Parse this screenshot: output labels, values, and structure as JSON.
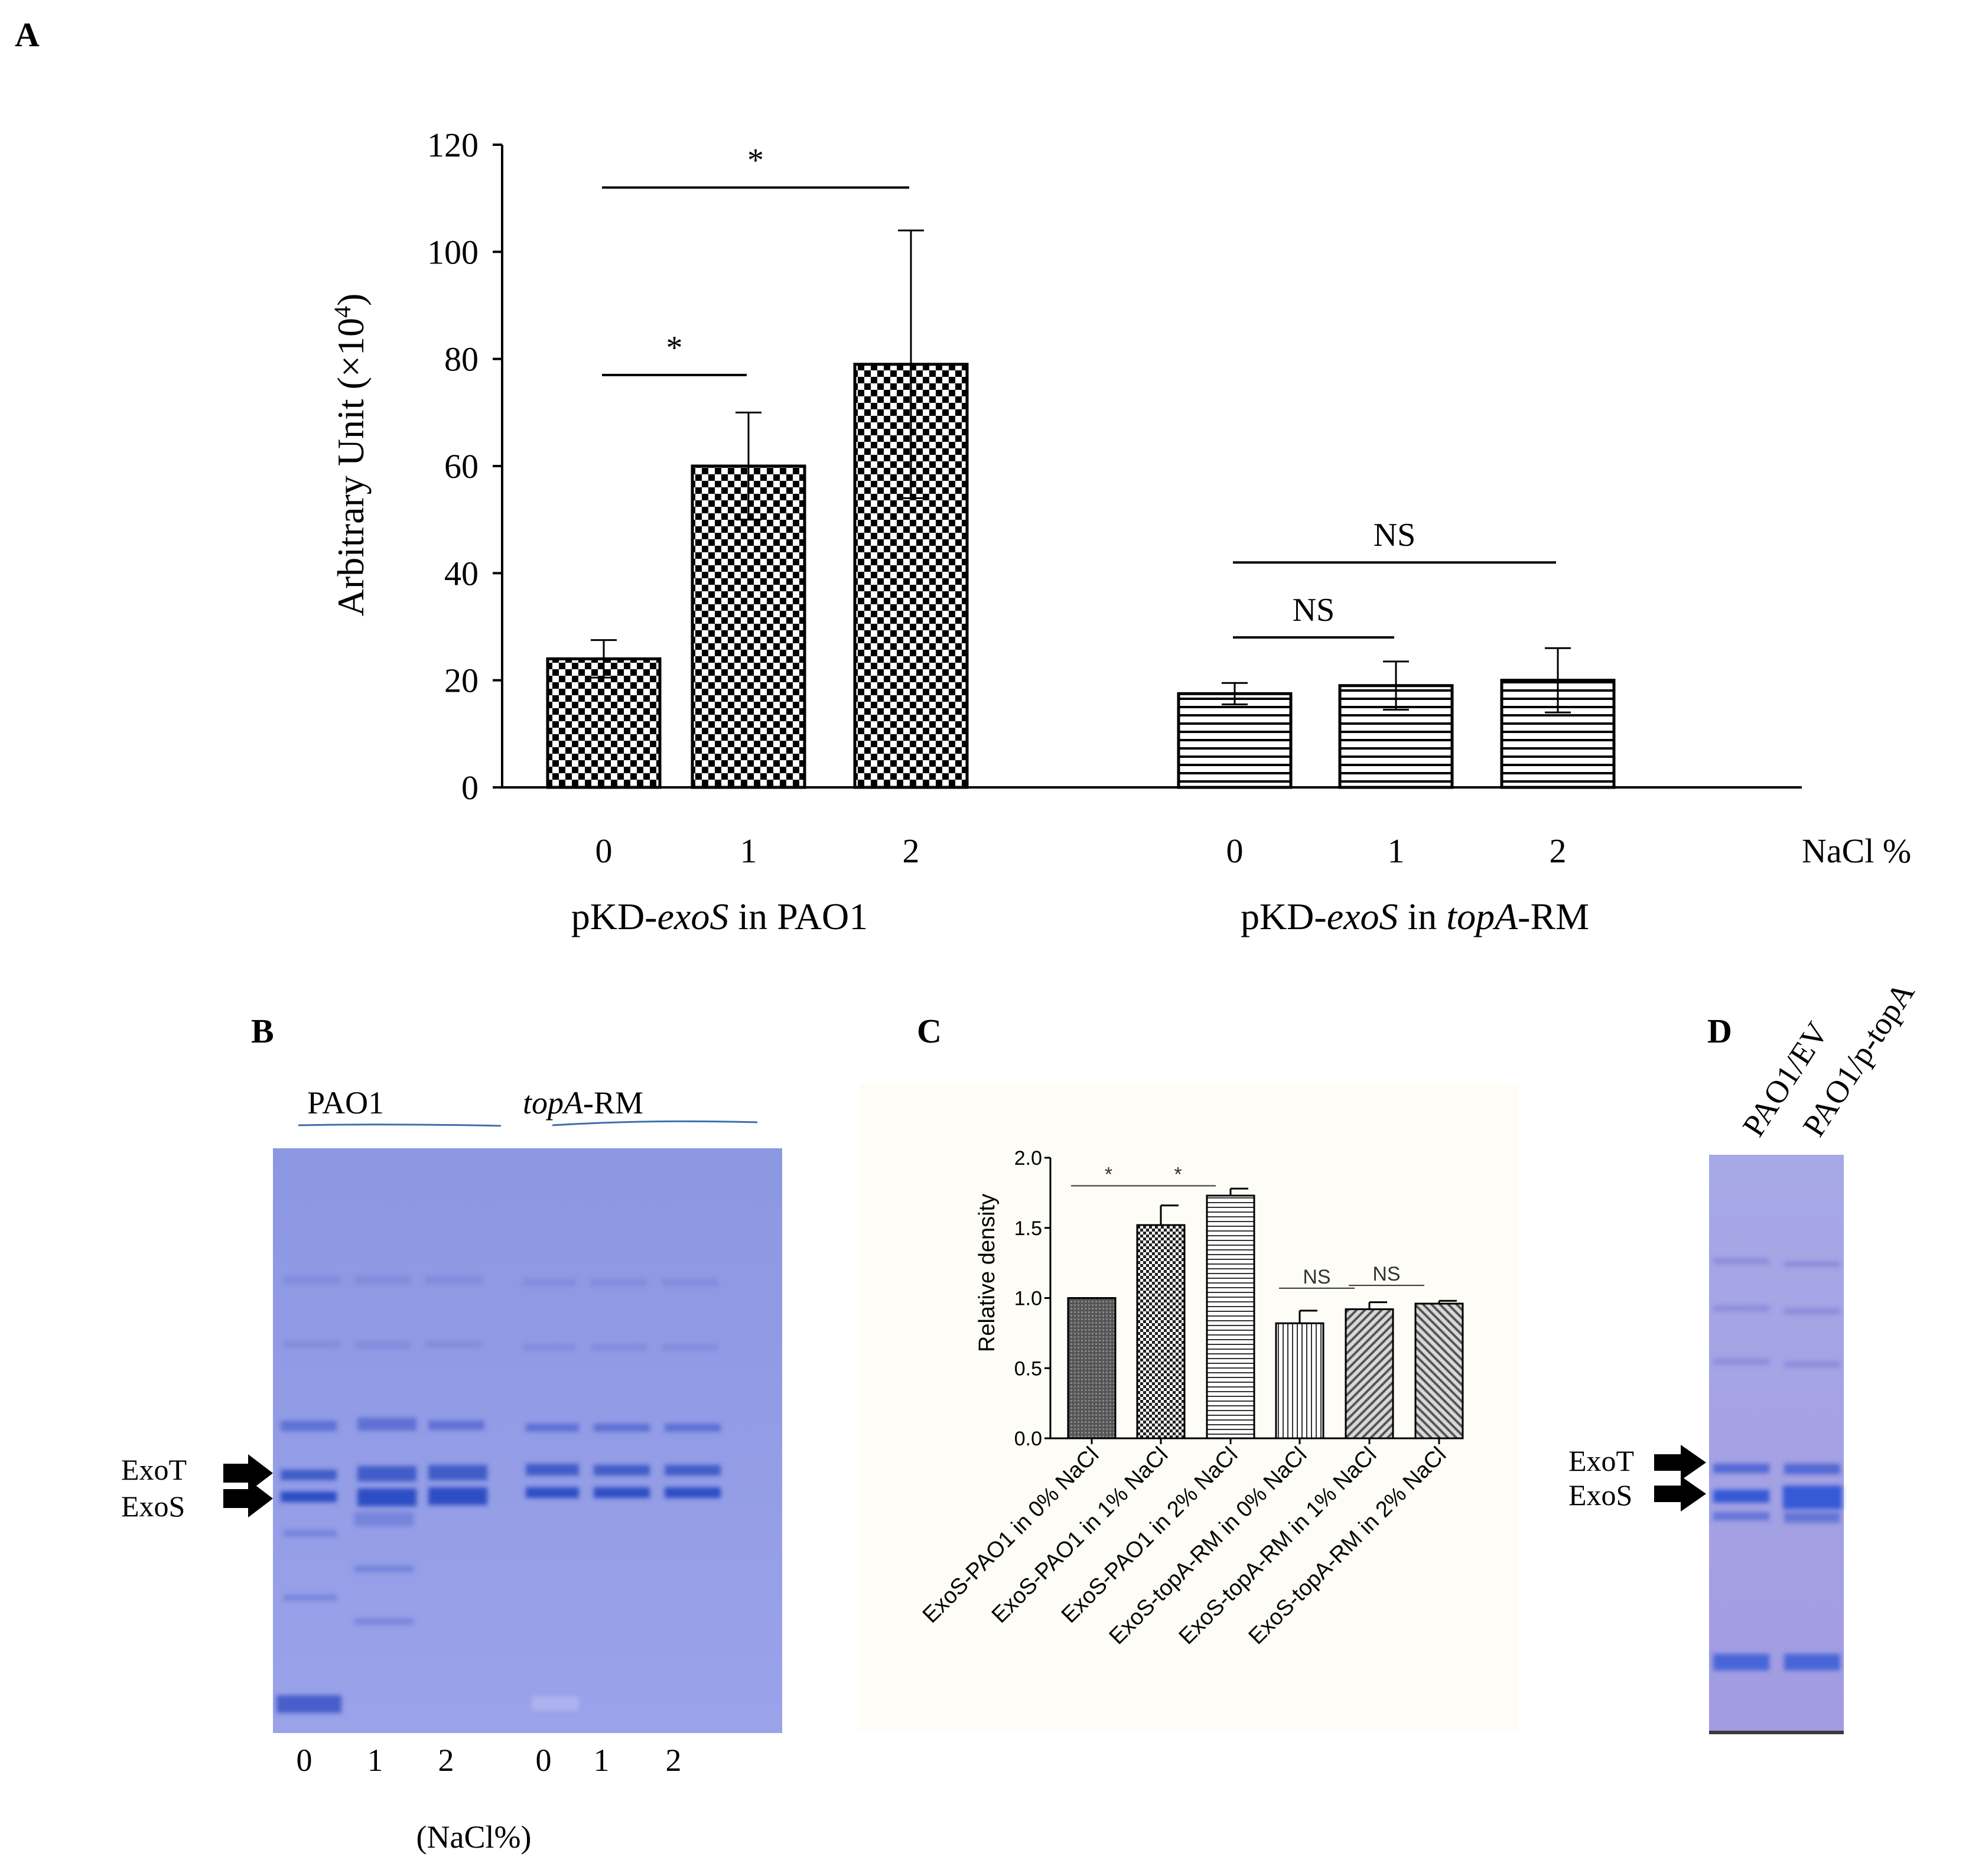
{
  "panels": {
    "A": {
      "letter": "A",
      "chart_data": {
        "type": "bar",
        "title": "",
        "ylabel_main": "Arbitrary Unit (×10",
        "ylabel_sup": "4",
        "ylabel_end": ")",
        "xlabel": "NaCl %",
        "ylim": [
          0,
          120
        ],
        "yticks": [
          "0",
          "20",
          "40",
          "60",
          "80",
          "100",
          "120"
        ],
        "groups": [
          {
            "label_pre": "pKD-",
            "label_ital": "exoS",
            "label_mid": " in PAO1",
            "label_ital2": "",
            "label_post": "",
            "pattern": "checker",
            "categories": [
              "0",
              "1",
              "2"
            ],
            "values": [
              24,
              60,
              79
            ],
            "errors": [
              3.5,
              10,
              25
            ]
          },
          {
            "label_pre": "pKD-",
            "label_ital": "exoS",
            "label_mid": " in ",
            "label_ital2": "topA",
            "label_post": "-RM",
            "pattern": "hlines",
            "categories": [
              "0",
              "1",
              "2"
            ],
            "values": [
              17.5,
              19,
              20
            ],
            "errors": [
              2,
              4.5,
              6
            ]
          }
        ],
        "significance": [
          {
            "group": 0,
            "from": 0,
            "to": 1,
            "label": "*",
            "y": 77
          },
          {
            "group": 0,
            "from": 0,
            "to": 2,
            "label": "*",
            "y": 112
          },
          {
            "group": 1,
            "from": 0,
            "to": 1,
            "label": "NS",
            "y": 28
          },
          {
            "group": 1,
            "from": 0,
            "to": 2,
            "label": "NS",
            "y": 42
          }
        ]
      }
    },
    "B": {
      "letter": "B",
      "header_left": "PAO1",
      "header_right_ital": "topA",
      "header_right_post": "-RM",
      "band_upper": "ExoT",
      "band_lower": "ExoS",
      "lanes": [
        "0",
        "1",
        "2",
        "0",
        "1",
        "2"
      ],
      "axis_caption": "(NaCl%)",
      "gel_color": "#8a96e0"
    },
    "C": {
      "letter": "C",
      "chart_data": {
        "type": "bar",
        "ylabel": "Relative density",
        "ylim": [
          0,
          2.0
        ],
        "yticks": [
          "0.0",
          "0.5",
          "1.0",
          "1.5",
          "2.0"
        ],
        "categories": [
          "ExoS-PAO1 in 0% NaCl",
          "ExoS-PAO1 in 1% NaCl",
          "ExoS-PAO1 in 2% NaCl",
          "ExoS-topA-RM in 0% NaCl",
          "ExoS-topA-RM in 1% NaCl",
          "ExoS-topA-RM in 2% NaCl"
        ],
        "values": [
          1.0,
          1.52,
          1.73,
          0.82,
          0.92,
          0.96
        ],
        "errors": [
          0,
          0.14,
          0.05,
          0.09,
          0.05,
          0.02
        ],
        "patterns": [
          "dense",
          "checker",
          "hlines",
          "vlines",
          "diag",
          "diag2"
        ],
        "significance": [
          {
            "from": 0,
            "to": 1,
            "label": "*",
            "y": 1.8
          },
          {
            "from": 1,
            "to": 2,
            "label": "*",
            "y": 1.8
          },
          {
            "from": 3,
            "to": 4,
            "label": "NS",
            "y": 1.07
          },
          {
            "from": 4,
            "to": 5,
            "label": "NS",
            "y": 1.09
          }
        ]
      }
    },
    "D": {
      "letter": "D",
      "lanes": [
        "PAO1/EV",
        "PAO1/p-topA"
      ],
      "band_upper": "ExoT",
      "band_lower": "ExoS",
      "gel_color": "#8f9ae0"
    }
  }
}
